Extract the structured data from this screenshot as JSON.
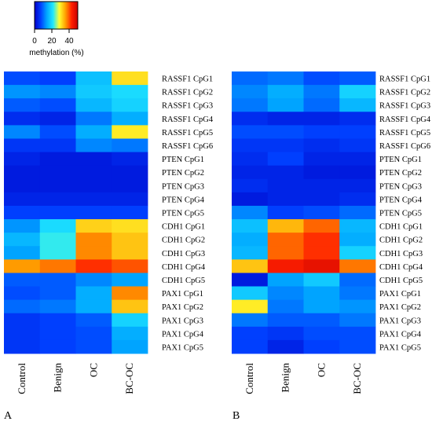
{
  "colorbar": {
    "tick_labels": [
      "0",
      "20",
      "40"
    ],
    "label": "methylation (%)",
    "min": 0,
    "max": 50,
    "stops": [
      "#0000c8",
      "#0040ff",
      "#00a8ff",
      "#20e8ff",
      "#ffff30",
      "#ffa000",
      "#ff2000",
      "#c80000"
    ]
  },
  "chart_data": [
    {
      "type": "heatmap",
      "panel_label": "A",
      "columns": [
        "Control",
        "Benign",
        "OC",
        "BC-OC"
      ],
      "rows": [
        "RASSF1 CpG1",
        "RASSF1 CpG2",
        "RASSF1 CpG3",
        "RASSF1 CpG4",
        "RASSF1 CpG5",
        "RASSF1 CpG6",
        "PTEN CpG1",
        "PTEN CpG2",
        "PTEN CpG3",
        "PTEN CpG4",
        "PTEN CpG5",
        "CDH1 CpG1",
        "CDH1 CpG2",
        "CDH1 CpG3",
        "CDH1 CpG4",
        "CDH1 CpG5",
        "PAX1 CpG1",
        "PAX1 CpG2",
        "PAX1 CpG3",
        "PAX1 CpG4",
        "PAX1 CpG5"
      ],
      "values": [
        [
          8,
          7,
          17,
          31
        ],
        [
          13,
          12,
          18,
          20
        ],
        [
          9,
          8,
          16,
          19
        ],
        [
          5,
          4,
          11,
          15
        ],
        [
          12,
          8,
          15,
          30
        ],
        [
          6,
          6,
          12,
          11
        ],
        [
          4,
          3,
          3,
          4
        ],
        [
          3,
          3,
          3,
          3
        ],
        [
          3,
          3,
          3,
          3
        ],
        [
          4,
          4,
          4,
          4
        ],
        [
          7,
          7,
          7,
          7
        ],
        [
          13,
          20,
          32,
          31
        ],
        [
          16,
          22,
          37,
          33
        ],
        [
          14,
          22,
          37,
          33
        ],
        [
          36,
          38,
          42,
          40
        ],
        [
          9,
          9,
          12,
          14
        ],
        [
          8,
          9,
          15,
          37
        ],
        [
          10,
          11,
          15,
          33
        ],
        [
          6,
          7,
          9,
          19
        ],
        [
          6,
          7,
          8,
          15
        ],
        [
          6,
          7,
          8,
          14
        ]
      ]
    },
    {
      "type": "heatmap",
      "panel_label": "B",
      "columns": [
        "Control",
        "Benign",
        "OC",
        "BC-OC"
      ],
      "rows": [
        "RASSF1 CpG1",
        "RASSF1 CpG2",
        "RASSF1 CpG3",
        "RASSF1 CpG4",
        "RASSF1 CpG5",
        "RASSF1 CpG6",
        "PTEN CpG1",
        "PTEN CpG2",
        "PTEN CpG3",
        "PTEN CpG4",
        "PTEN CpG5",
        "CDH1 CpG1",
        "CDH1 CpG2",
        "CDH1 CpG3",
        "CDH1 CpG4",
        "CDH1 CpG5",
        "PAX1 CpG1",
        "PAX1 CpG2",
        "PAX1 CpG3",
        "PAX1 CpG4",
        "PAX1 CpG5"
      ],
      "values": [
        [
          10,
          11,
          8,
          9
        ],
        [
          12,
          15,
          11,
          19
        ],
        [
          11,
          14,
          10,
          16
        ],
        [
          5,
          4,
          4,
          5
        ],
        [
          8,
          8,
          7,
          7
        ],
        [
          6,
          6,
          5,
          6
        ],
        [
          5,
          7,
          4,
          4
        ],
        [
          4,
          4,
          3,
          3
        ],
        [
          5,
          4,
          4,
          4
        ],
        [
          3,
          4,
          4,
          5
        ],
        [
          12,
          7,
          8,
          10
        ],
        [
          17,
          34,
          39,
          16
        ],
        [
          15,
          39,
          42,
          15
        ],
        [
          16,
          39,
          42,
          19
        ],
        [
          33,
          44,
          46,
          38
        ],
        [
          3,
          14,
          18,
          10
        ],
        [
          18,
          12,
          14,
          11
        ],
        [
          30,
          11,
          14,
          13
        ],
        [
          11,
          9,
          9,
          11
        ],
        [
          7,
          6,
          8,
          8
        ],
        [
          7,
          4,
          7,
          8
        ]
      ]
    }
  ]
}
